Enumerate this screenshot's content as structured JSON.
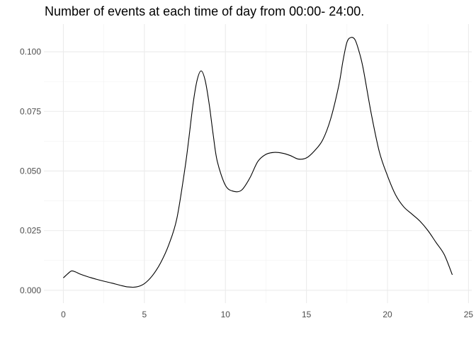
{
  "chart_data": {
    "type": "line",
    "title": "Number of events at each time of day from 00:00- 24:00.",
    "xlabel": "",
    "ylabel": "",
    "xlim": [
      -1.2,
      25.2
    ],
    "ylim": [
      -0.0054,
      0.1116
    ],
    "x_ticks": [
      0,
      5,
      10,
      15,
      20,
      25
    ],
    "y_ticks": [
      0.0,
      0.025,
      0.05,
      0.075,
      0.1
    ],
    "x_tick_labels": [
      "0",
      "5",
      "10",
      "15",
      "20",
      "25"
    ],
    "y_tick_labels": [
      "0.000",
      "0.025",
      "0.050",
      "0.075",
      "0.100"
    ],
    "grid": true,
    "series": [
      {
        "color": "#000000",
        "points": [
          [
            0.0,
            0.0052
          ],
          [
            0.25,
            0.0068
          ],
          [
            0.5,
            0.0081
          ],
          [
            0.75,
            0.0077
          ],
          [
            1.0,
            0.0069
          ],
          [
            1.5,
            0.0057
          ],
          [
            2.0,
            0.0047
          ],
          [
            2.5,
            0.0038
          ],
          [
            3.0,
            0.003
          ],
          [
            3.5,
            0.0021
          ],
          [
            4.0,
            0.0014
          ],
          [
            4.5,
            0.0014
          ],
          [
            5.0,
            0.0028
          ],
          [
            5.5,
            0.0062
          ],
          [
            6.0,
            0.0115
          ],
          [
            6.5,
            0.019
          ],
          [
            7.0,
            0.03
          ],
          [
            7.5,
            0.051
          ],
          [
            7.75,
            0.064
          ],
          [
            8.0,
            0.078
          ],
          [
            8.25,
            0.088
          ],
          [
            8.5,
            0.092
          ],
          [
            8.75,
            0.088
          ],
          [
            9.0,
            0.078
          ],
          [
            9.25,
            0.065
          ],
          [
            9.5,
            0.054
          ],
          [
            10.0,
            0.044
          ],
          [
            10.5,
            0.0415
          ],
          [
            11.0,
            0.042
          ],
          [
            11.5,
            0.047
          ],
          [
            12.0,
            0.054
          ],
          [
            12.5,
            0.057
          ],
          [
            13.0,
            0.0578
          ],
          [
            13.5,
            0.0575
          ],
          [
            14.0,
            0.0565
          ],
          [
            14.5,
            0.055
          ],
          [
            15.0,
            0.0555
          ],
          [
            15.5,
            0.0585
          ],
          [
            16.0,
            0.063
          ],
          [
            16.5,
            0.072
          ],
          [
            17.0,
            0.086
          ],
          [
            17.25,
            0.096
          ],
          [
            17.5,
            0.104
          ],
          [
            17.75,
            0.106
          ],
          [
            18.0,
            0.105
          ],
          [
            18.25,
            0.1
          ],
          [
            18.5,
            0.093
          ],
          [
            19.0,
            0.074
          ],
          [
            19.5,
            0.058
          ],
          [
            20.0,
            0.048
          ],
          [
            20.5,
            0.04
          ],
          [
            21.0,
            0.035
          ],
          [
            21.5,
            0.032
          ],
          [
            22.0,
            0.029
          ],
          [
            22.5,
            0.025
          ],
          [
            23.0,
            0.02
          ],
          [
            23.5,
            0.015
          ],
          [
            24.0,
            0.0065
          ]
        ]
      }
    ]
  }
}
